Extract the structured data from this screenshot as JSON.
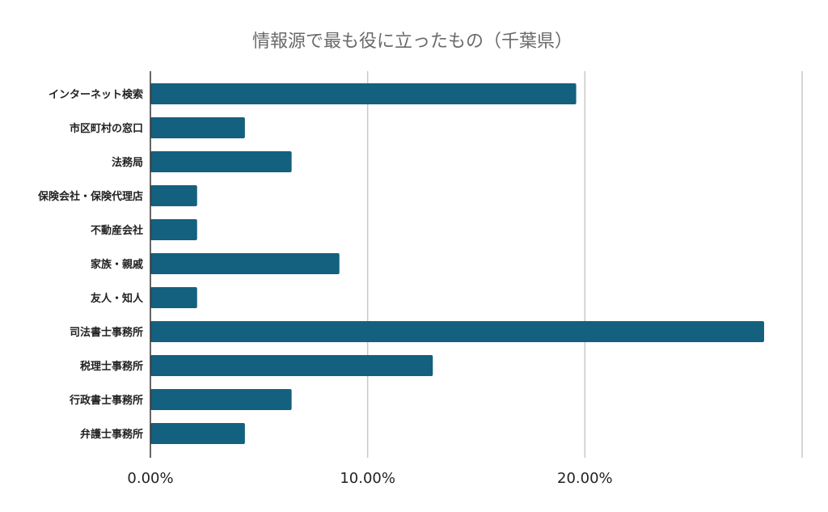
{
  "chart_data": {
    "type": "bar",
    "orientation": "horizontal",
    "title": "情報源で最も役に立ったもの（千葉県）",
    "categories": [
      "インターネット検索",
      "市区町村の窓口",
      "法務局",
      "保険会社・保険代理店",
      "不動産会社",
      "家族・親戚",
      "友人・知人",
      "司法書士事務所",
      "税理士事務所",
      "行政書士事務所",
      "弁護士事務所"
    ],
    "values": [
      19.6,
      4.35,
      6.5,
      2.15,
      2.15,
      8.7,
      2.15,
      28.25,
      13.0,
      6.5,
      4.35
    ],
    "xlim": [
      0,
      30
    ],
    "ticks": [
      0,
      10,
      20,
      30
    ],
    "tick_labels": [
      "0.00%",
      "10.00%",
      "20.00%",
      ""
    ],
    "grid": true,
    "legend": "none",
    "bar_color": "#14607f"
  }
}
